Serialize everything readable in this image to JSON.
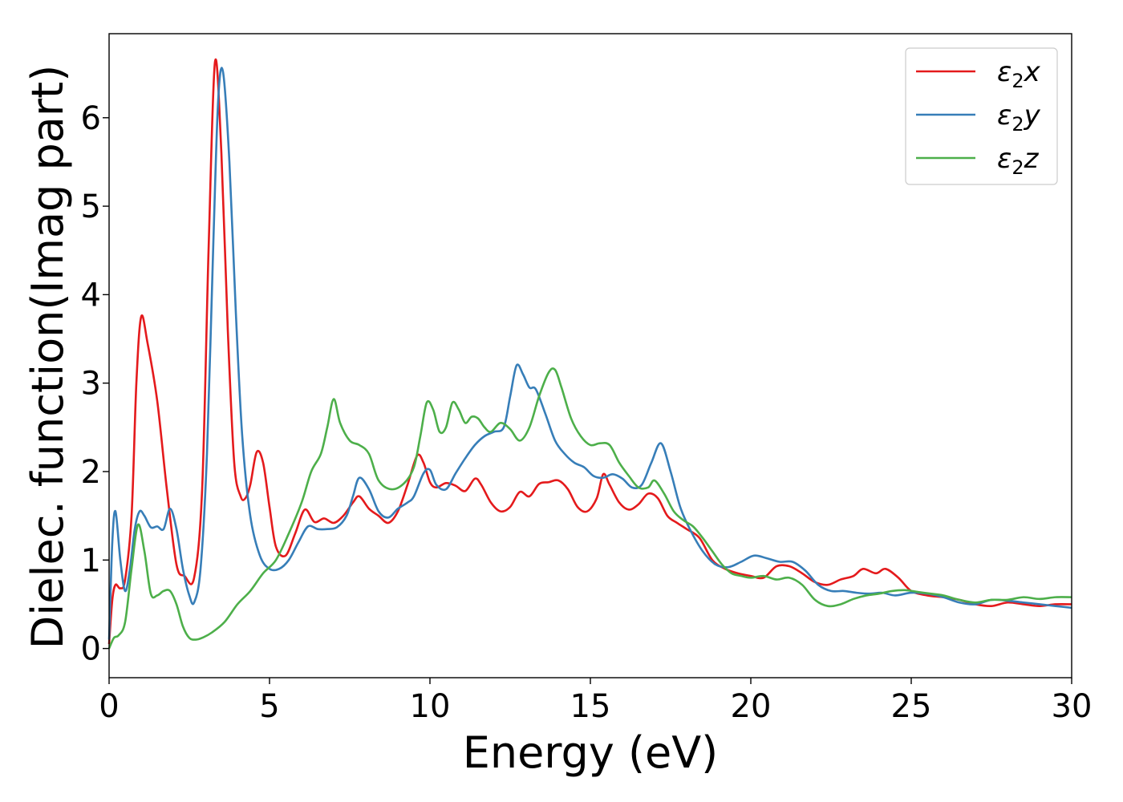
{
  "chart_data": {
    "type": "line",
    "xlabel": "Energy (eV)",
    "ylabel": "Dielec. function(Imag part)",
    "xlim": [
      0,
      30
    ],
    "ylim": [
      -0.33,
      6.95
    ],
    "xticks": [
      "0",
      "5",
      "10",
      "15",
      "20",
      "25",
      "30"
    ],
    "yticks": [
      "0",
      "1",
      "2",
      "3",
      "4",
      "5",
      "6"
    ],
    "grid": false,
    "legend_position": "top-right",
    "series": [
      {
        "name": "ε2x",
        "legend": {
          "base": "ε",
          "sub": "2",
          "suffix": "x"
        },
        "color": "#e41a1c",
        "x": [
          0,
          0.1,
          0.2,
          0.35,
          0.5,
          0.7,
          0.85,
          1.0,
          1.2,
          1.5,
          1.8,
          2.1,
          2.35,
          2.65,
          2.9,
          3.1,
          3.3,
          3.5,
          3.7,
          3.9,
          4.1,
          4.25,
          4.4,
          4.6,
          4.8,
          5.0,
          5.2,
          5.5,
          5.8,
          6.1,
          6.4,
          6.7,
          7.0,
          7.3,
          7.6,
          7.8,
          8.1,
          8.4,
          8.7,
          9.0,
          9.3,
          9.6,
          9.8,
          10.0,
          10.2,
          10.5,
          10.8,
          11.1,
          11.4,
          11.6,
          11.9,
          12.2,
          12.5,
          12.8,
          13.1,
          13.4,
          13.7,
          14.0,
          14.3,
          14.6,
          14.9,
          15.2,
          15.4,
          15.6,
          15.9,
          16.2,
          16.5,
          16.8,
          17.1,
          17.4,
          17.7,
          18.0,
          18.4,
          18.8,
          19.2,
          19.6,
          20.0,
          20.4,
          20.8,
          21.2,
          21.6,
          22.0,
          22.4,
          22.8,
          23.2,
          23.5,
          23.9,
          24.2,
          24.6,
          25.0,
          25.5,
          26.0,
          26.5,
          27.0,
          27.5,
          28.0,
          28.5,
          29.0,
          29.5,
          30.0
        ],
        "values": [
          0.05,
          0.55,
          0.72,
          0.68,
          0.78,
          1.5,
          3.0,
          3.75,
          3.45,
          2.8,
          1.8,
          0.95,
          0.82,
          0.8,
          1.8,
          4.5,
          6.63,
          5.6,
          3.6,
          2.1,
          1.72,
          1.7,
          1.85,
          2.22,
          2.1,
          1.6,
          1.15,
          1.05,
          1.3,
          1.57,
          1.43,
          1.47,
          1.42,
          1.5,
          1.65,
          1.72,
          1.58,
          1.5,
          1.42,
          1.55,
          1.85,
          2.18,
          2.1,
          1.88,
          1.82,
          1.87,
          1.84,
          1.78,
          1.92,
          1.85,
          1.65,
          1.55,
          1.6,
          1.77,
          1.72,
          1.86,
          1.88,
          1.9,
          1.8,
          1.6,
          1.55,
          1.7,
          1.97,
          1.85,
          1.65,
          1.57,
          1.63,
          1.75,
          1.7,
          1.5,
          1.42,
          1.35,
          1.25,
          1.0,
          0.9,
          0.85,
          0.82,
          0.8,
          0.93,
          0.93,
          0.85,
          0.75,
          0.72,
          0.78,
          0.82,
          0.9,
          0.85,
          0.9,
          0.8,
          0.65,
          0.6,
          0.58,
          0.55,
          0.5,
          0.48,
          0.52,
          0.5,
          0.48,
          0.5,
          0.5
        ]
      },
      {
        "name": "ε2y",
        "legend": {
          "base": "ε",
          "sub": "2",
          "suffix": "y"
        },
        "color": "#377eb8",
        "x": [
          0,
          0.1,
          0.2,
          0.35,
          0.5,
          0.65,
          0.8,
          0.95,
          1.1,
          1.3,
          1.5,
          1.7,
          1.9,
          2.1,
          2.3,
          2.5,
          2.65,
          2.85,
          3.05,
          3.25,
          3.4,
          3.55,
          3.75,
          3.95,
          4.15,
          4.4,
          4.7,
          5.0,
          5.3,
          5.6,
          5.9,
          6.2,
          6.5,
          6.8,
          7.1,
          7.4,
          7.6,
          7.8,
          8.1,
          8.4,
          8.7,
          9.0,
          9.3,
          9.5,
          9.8,
          10.0,
          10.2,
          10.5,
          10.8,
          11.1,
          11.4,
          11.7,
          12.0,
          12.3,
          12.5,
          12.7,
          12.9,
          13.1,
          13.3,
          13.6,
          13.9,
          14.2,
          14.5,
          14.8,
          15.1,
          15.4,
          15.7,
          16.0,
          16.3,
          16.6,
          16.9,
          17.2,
          17.5,
          17.8,
          18.1,
          18.5,
          18.9,
          19.3,
          19.7,
          20.1,
          20.5,
          20.9,
          21.3,
          21.7,
          22.1,
          22.5,
          22.9,
          23.3,
          23.7,
          24.1,
          24.5,
          25.0,
          25.5,
          26.0,
          26.5,
          27.0,
          27.5,
          28.0,
          28.5,
          29.0,
          29.5,
          30.0
        ],
        "values": [
          0.1,
          1.2,
          1.55,
          1.0,
          0.65,
          0.9,
          1.35,
          1.55,
          1.5,
          1.37,
          1.38,
          1.35,
          1.58,
          1.35,
          0.9,
          0.6,
          0.52,
          0.9,
          2.2,
          4.6,
          6.2,
          6.52,
          5.5,
          3.8,
          2.4,
          1.5,
          1.05,
          0.9,
          0.9,
          1.0,
          1.2,
          1.38,
          1.35,
          1.35,
          1.37,
          1.5,
          1.72,
          1.93,
          1.8,
          1.55,
          1.48,
          1.58,
          1.65,
          1.72,
          1.98,
          2.02,
          1.85,
          1.8,
          1.98,
          2.15,
          2.3,
          2.4,
          2.45,
          2.5,
          2.85,
          3.2,
          3.1,
          2.95,
          2.93,
          2.65,
          2.35,
          2.2,
          2.1,
          2.05,
          1.95,
          1.93,
          1.97,
          1.92,
          1.82,
          1.85,
          2.1,
          2.32,
          2.0,
          1.6,
          1.35,
          1.1,
          0.95,
          0.92,
          0.98,
          1.05,
          1.02,
          0.98,
          0.98,
          0.88,
          0.72,
          0.65,
          0.65,
          0.63,
          0.62,
          0.63,
          0.6,
          0.63,
          0.62,
          0.58,
          0.52,
          0.5,
          0.55,
          0.54,
          0.52,
          0.5,
          0.48,
          0.46
        ]
      },
      {
        "name": "ε2z",
        "legend": {
          "base": "ε",
          "sub": "2",
          "suffix": "z"
        },
        "color": "#4daf4a",
        "x": [
          0,
          0.15,
          0.3,
          0.5,
          0.7,
          0.9,
          1.1,
          1.3,
          1.5,
          1.7,
          1.9,
          2.1,
          2.3,
          2.5,
          2.7,
          2.9,
          3.2,
          3.6,
          4.0,
          4.4,
          4.8,
          5.2,
          5.6,
          6.0,
          6.3,
          6.6,
          6.8,
          7.0,
          7.2,
          7.5,
          7.8,
          8.1,
          8.4,
          8.8,
          9.2,
          9.5,
          9.7,
          9.9,
          10.1,
          10.3,
          10.5,
          10.7,
          10.9,
          11.1,
          11.3,
          11.5,
          11.7,
          11.9,
          12.2,
          12.5,
          12.8,
          13.1,
          13.4,
          13.7,
          13.9,
          14.1,
          14.4,
          14.7,
          15.0,
          15.3,
          15.6,
          15.9,
          16.2,
          16.5,
          16.8,
          17.0,
          17.3,
          17.6,
          17.9,
          18.2,
          18.5,
          18.8,
          19.1,
          19.4,
          19.7,
          20.0,
          20.4,
          20.8,
          21.2,
          21.6,
          22.0,
          22.4,
          22.8,
          23.2,
          23.6,
          24.0,
          24.4,
          24.8,
          25.2,
          25.6,
          26.0,
          26.5,
          27.0,
          27.5,
          28.0,
          28.5,
          29.0,
          29.5,
          30.0
        ],
        "values": [
          0.0,
          0.12,
          0.15,
          0.3,
          0.9,
          1.4,
          1.1,
          0.62,
          0.6,
          0.65,
          0.65,
          0.5,
          0.25,
          0.12,
          0.1,
          0.12,
          0.18,
          0.3,
          0.5,
          0.65,
          0.85,
          1.0,
          1.3,
          1.65,
          2.0,
          2.2,
          2.5,
          2.82,
          2.55,
          2.35,
          2.3,
          2.2,
          1.9,
          1.8,
          1.87,
          2.05,
          2.4,
          2.78,
          2.7,
          2.45,
          2.5,
          2.78,
          2.7,
          2.55,
          2.62,
          2.6,
          2.5,
          2.45,
          2.55,
          2.48,
          2.35,
          2.5,
          2.85,
          3.12,
          3.15,
          2.95,
          2.6,
          2.4,
          2.3,
          2.32,
          2.3,
          2.1,
          1.95,
          1.82,
          1.82,
          1.9,
          1.75,
          1.55,
          1.45,
          1.38,
          1.25,
          1.1,
          0.95,
          0.85,
          0.82,
          0.8,
          0.82,
          0.78,
          0.8,
          0.72,
          0.55,
          0.48,
          0.5,
          0.56,
          0.6,
          0.62,
          0.65,
          0.66,
          0.64,
          0.62,
          0.6,
          0.55,
          0.52,
          0.55,
          0.55,
          0.58,
          0.56,
          0.58,
          0.58
        ]
      }
    ]
  }
}
